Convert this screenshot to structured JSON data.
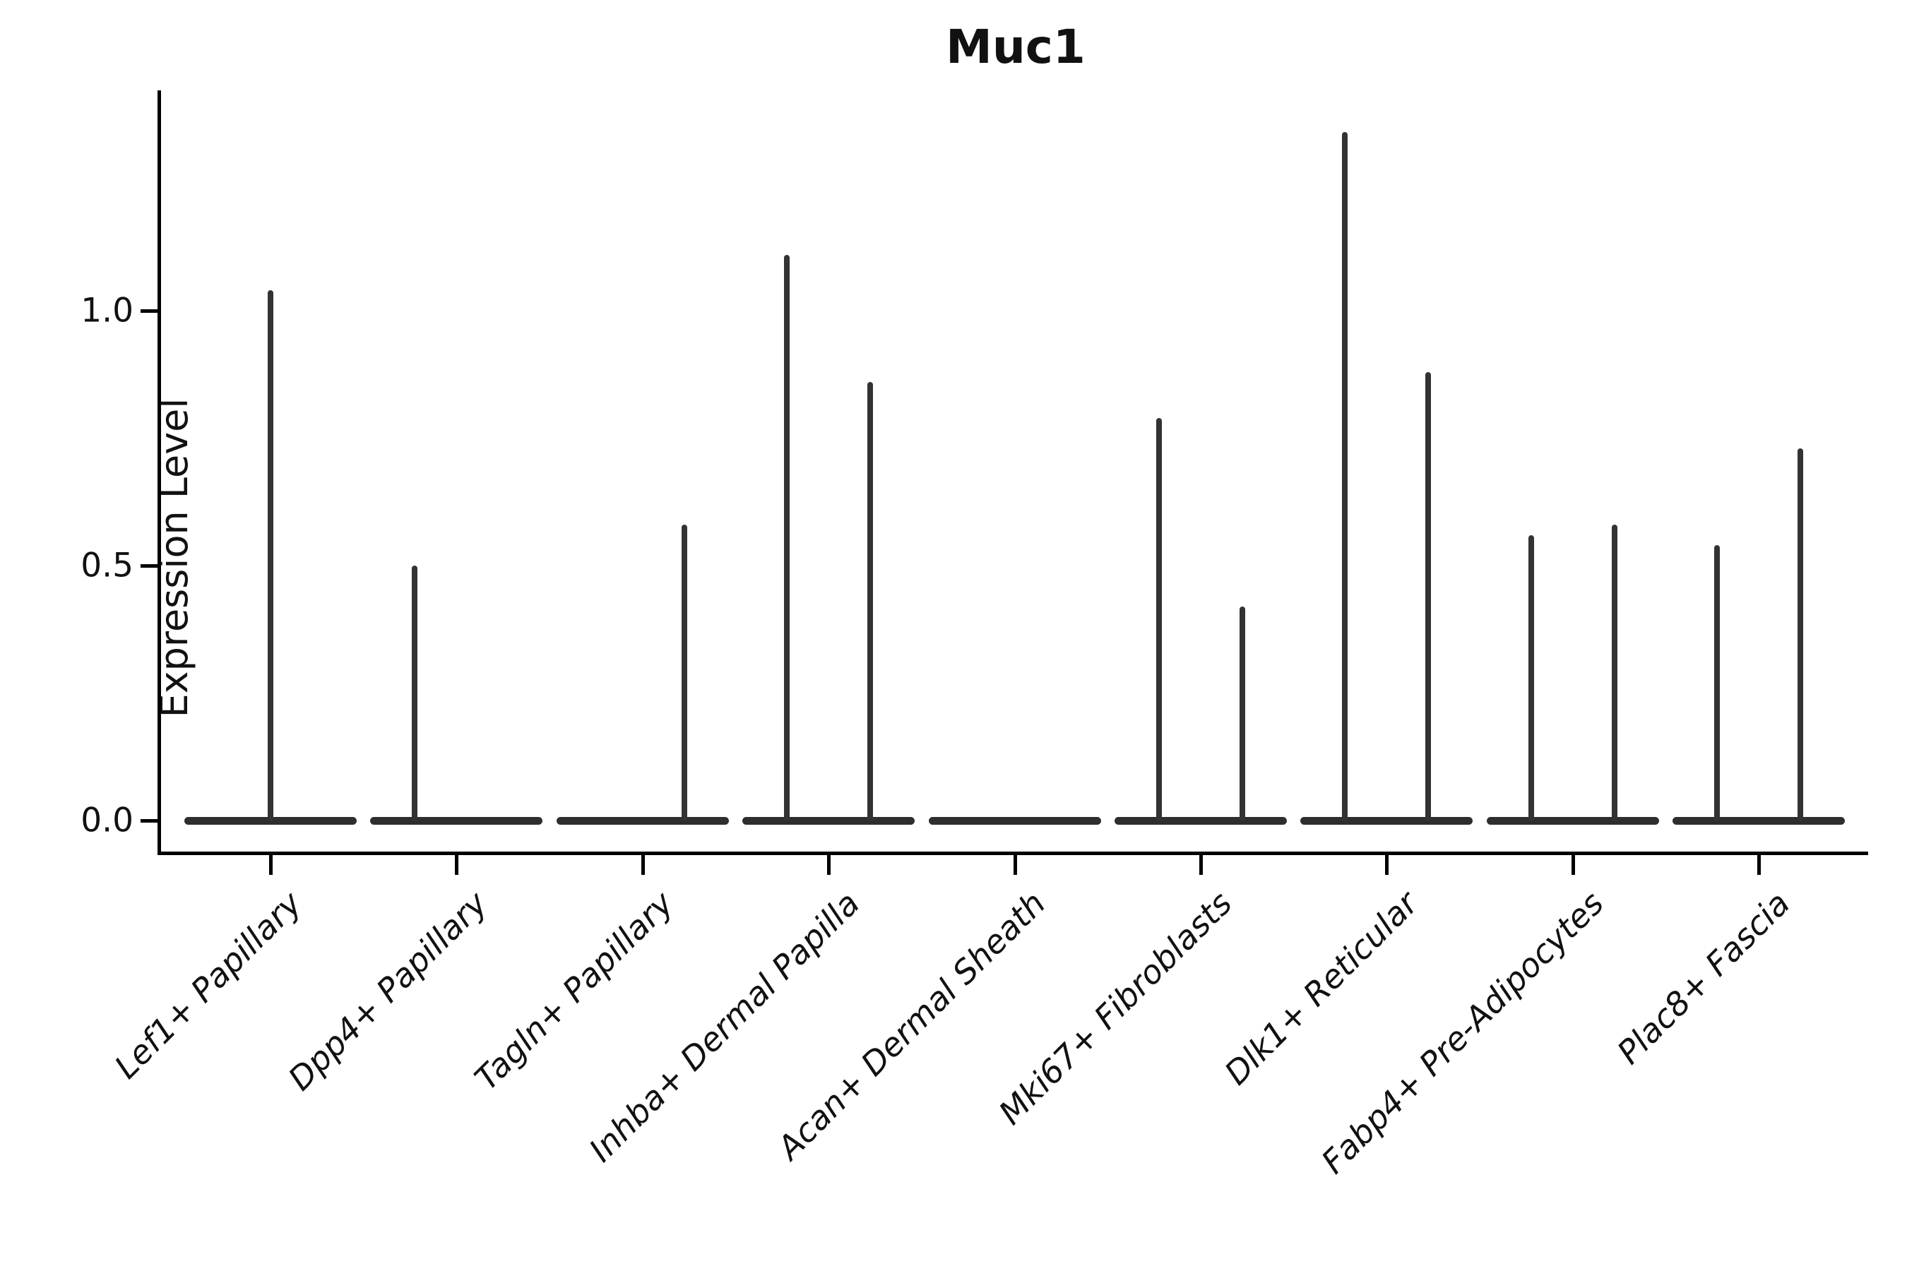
{
  "title": "Muc1",
  "y_axis": {
    "label": "Expression Level",
    "tick_labels": [
      "1.0",
      "0.5",
      "0.0"
    ]
  },
  "colors": {
    "background": "#ffffff",
    "spine": "#000000",
    "violin_line": "#333333",
    "text": "#111111"
  },
  "chart_data": {
    "type": "violin",
    "title": "Muc1",
    "xlabel": "",
    "ylabel": "Expression Level",
    "ylim": [
      -0.06,
      1.43
    ],
    "yticks": [
      1.0,
      0.5,
      0.0
    ],
    "grid": false,
    "legend": "none",
    "x_tick_rotation": 45,
    "description": "Violin plot of Muc1 expression per fibroblast cluster; nearly all cells have zero expression so each violin collapses to a flat bar at 0 with thin needles rising to the maximum expression of the few positive cells. Several clusters show two needles (two sub-violins at left/right offsets within the category).",
    "categories": [
      "Lef1+ Papillary",
      "Dpp4+ Papillary",
      "Tagln+ Papillary",
      "Inhba+ Dermal Papilla",
      "Acan+ Dermal Sheath",
      "Mki67+ Fibroblasts",
      "Dlk1+ Reticular",
      "Fabp4+ Pre-Adipocytes",
      "Plac8+ Fascia"
    ],
    "violins": [
      {
        "category": "Lef1+ Papillary",
        "needles": [
          {
            "pos": "center",
            "max": 1.04
          }
        ]
      },
      {
        "category": "Dpp4+ Papillary",
        "needles": [
          {
            "pos": "left",
            "max": 0.5
          }
        ]
      },
      {
        "category": "Tagln+ Papillary",
        "needles": [
          {
            "pos": "right",
            "max": 0.58
          }
        ]
      },
      {
        "category": "Inhba+ Dermal Papilla",
        "needles": [
          {
            "pos": "left",
            "max": 1.11
          },
          {
            "pos": "right",
            "max": 0.86
          }
        ]
      },
      {
        "category": "Acan+ Dermal Sheath",
        "needles": []
      },
      {
        "category": "Mki67+ Fibroblasts",
        "needles": [
          {
            "pos": "left",
            "max": 0.79
          },
          {
            "pos": "right",
            "max": 0.42
          }
        ]
      },
      {
        "category": "Dlk1+ Reticular",
        "needles": [
          {
            "pos": "left",
            "max": 1.35
          },
          {
            "pos": "right",
            "max": 0.88
          }
        ]
      },
      {
        "category": "Fabp4+ Pre-Adipocytes",
        "needles": [
          {
            "pos": "left",
            "max": 0.56
          },
          {
            "pos": "right",
            "max": 0.58
          }
        ]
      },
      {
        "category": "Plac8+ Fascia",
        "needles": [
          {
            "pos": "left",
            "max": 0.54
          },
          {
            "pos": "right",
            "max": 0.73
          }
        ]
      }
    ]
  }
}
